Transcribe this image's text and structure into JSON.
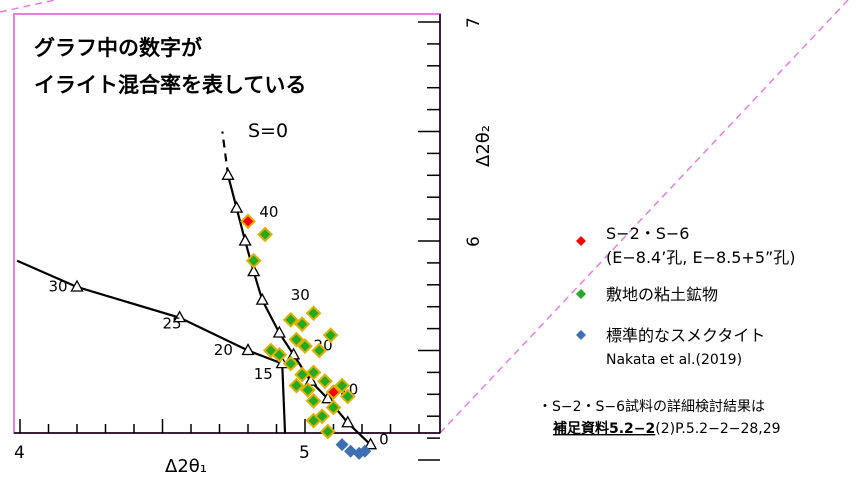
{
  "annotation": {
    "line1": "グラフ中の数字が",
    "line2": "イライト混合率を表している"
  },
  "chart_data": {
    "type": "scatter",
    "xlabel": "Δ2θ₁",
    "ylabel": "Δ2θ₂",
    "xlim": [
      4.0,
      5.4
    ],
    "ylim": [
      5.0,
      7.0
    ],
    "x_ticks": [
      {
        "value": 4,
        "label": "4"
      },
      {
        "value": 5,
        "label": "5"
      }
    ],
    "y_ticks": [
      {
        "value": 6,
        "label": "6"
      },
      {
        "value": 7,
        "label": "7"
      }
    ],
    "curve_label": "S=0",
    "reference_curves": [
      {
        "points": [
          [
            4.93,
            5.12
          ],
          [
            4.92,
            5.44
          ],
          [
            4.8,
            5.5
          ],
          [
            4.56,
            5.65
          ],
          [
            4.2,
            5.79
          ],
          [
            3.99,
            5.91
          ]
        ],
        "markers": [
          [
            4.92,
            5.44
          ],
          [
            4.8,
            5.5
          ],
          [
            4.56,
            5.65
          ],
          [
            4.2,
            5.79
          ]
        ],
        "labels": [
          {
            "x": 4.1,
            "y": 5.77,
            "text": "30"
          },
          {
            "x": 4.5,
            "y": 5.6,
            "text": "25"
          },
          {
            "x": 4.68,
            "y": 5.48,
            "text": "20"
          },
          {
            "x": 4.82,
            "y": 5.37,
            "text": "15"
          }
        ]
      },
      {
        "points": [
          [
            5.23,
            5.07
          ],
          [
            5.15,
            5.17
          ],
          [
            5.08,
            5.28
          ],
          [
            5.02,
            5.36
          ],
          [
            4.96,
            5.48
          ],
          [
            4.91,
            5.58
          ],
          [
            4.85,
            5.73
          ],
          [
            4.82,
            5.86
          ],
          [
            4.79,
            6.0
          ],
          [
            4.76,
            6.15
          ],
          [
            4.73,
            6.3
          ]
        ],
        "dashed_points": [
          [
            4.73,
            6.3
          ],
          [
            4.71,
            6.5
          ]
        ],
        "markers": [
          [
            5.23,
            5.07
          ],
          [
            5.15,
            5.17
          ],
          [
            5.08,
            5.28
          ],
          [
            5.02,
            5.36
          ],
          [
            4.96,
            5.48
          ],
          [
            4.91,
            5.58
          ],
          [
            4.85,
            5.73
          ],
          [
            4.82,
            5.86
          ],
          [
            4.79,
            6.0
          ],
          [
            4.76,
            6.15
          ],
          [
            4.73,
            6.3
          ]
        ],
        "labels": [
          {
            "x": 5.26,
            "y": 5.07,
            "text": "0"
          },
          {
            "x": 5.12,
            "y": 5.3,
            "text": "10"
          },
          {
            "x": 5.03,
            "y": 5.5,
            "text": "20"
          },
          {
            "x": 4.95,
            "y": 5.73,
            "text": "30"
          },
          {
            "x": 4.84,
            "y": 6.11,
            "text": "40"
          }
        ]
      }
    ],
    "series": [
      {
        "name": "S−2・S−6",
        "name_line2": "(E−8.4’孔, E−8.5+5”孔)",
        "marker": "diamond",
        "color": "#ff0000",
        "outline": "#e0b000",
        "points": [
          [
            4.8,
            6.09
          ],
          [
            5.1,
            5.31
          ]
        ]
      },
      {
        "name": "敷地の粘土鉱物",
        "marker": "diamond",
        "color": "#22aa22",
        "outline": "#e0b000",
        "points": [
          [
            4.82,
            5.91
          ],
          [
            4.86,
            6.03
          ],
          [
            4.88,
            5.5
          ],
          [
            4.91,
            5.48
          ],
          [
            4.95,
            5.64
          ],
          [
            4.97,
            5.55
          ],
          [
            4.99,
            5.62
          ],
          [
            5.0,
            5.52
          ],
          [
            5.03,
            5.67
          ],
          [
            5.05,
            5.5
          ],
          [
            5.09,
            5.57
          ],
          [
            4.95,
            5.44
          ],
          [
            4.99,
            5.39
          ],
          [
            4.97,
            5.34
          ],
          [
            5.01,
            5.32
          ],
          [
            5.03,
            5.4
          ],
          [
            5.07,
            5.36
          ],
          [
            5.13,
            5.34
          ],
          [
            5.15,
            5.29
          ],
          [
            5.1,
            5.24
          ],
          [
            5.03,
            5.27
          ],
          [
            5.06,
            5.2
          ],
          [
            5.03,
            5.18
          ],
          [
            5.08,
            5.13
          ]
        ]
      },
      {
        "name": "標準的なスメクタイト",
        "name_line2": "Nakata et al.(2019)",
        "marker": "diamond",
        "color": "#3c6fb4",
        "points": [
          [
            5.13,
            5.07
          ],
          [
            5.16,
            5.04
          ],
          [
            5.19,
            5.03
          ],
          [
            5.21,
            5.04
          ]
        ]
      }
    ]
  },
  "note": {
    "line1": "・S−2・S−6試料の詳細検討結果は",
    "link": "補足資料5.2−2",
    "rest": "(2)P.5.2−2−28,29"
  }
}
